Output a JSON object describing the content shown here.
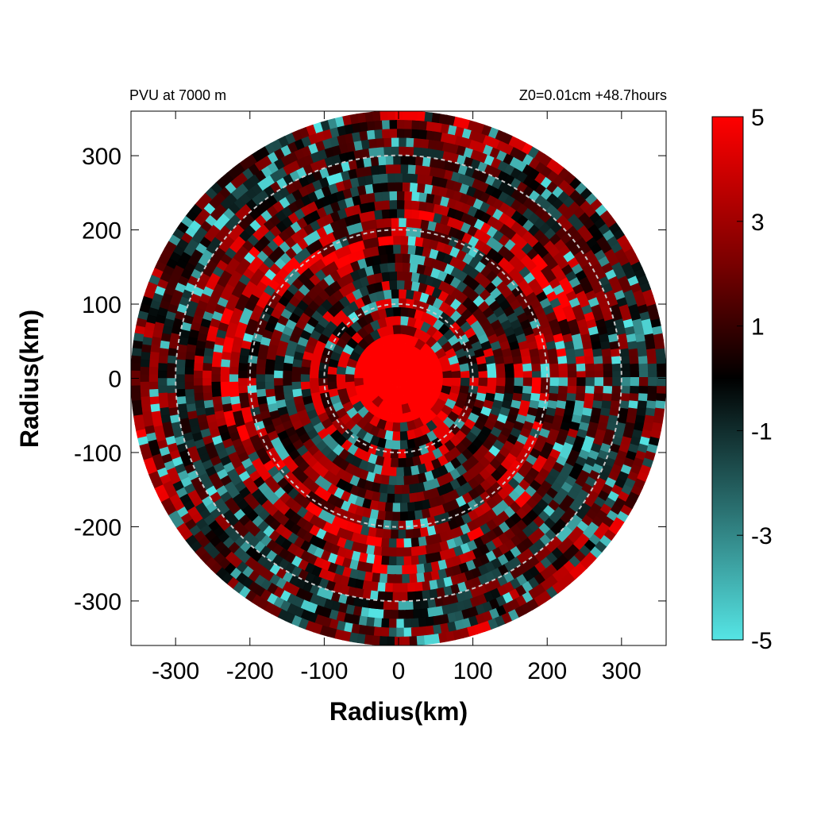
{
  "chart_data": {
    "type": "heatmap",
    "title_left": "PVU at  7000 m",
    "title_right": "Z0=0.01cm  +48.7hours",
    "xlabel": "Radius(km)",
    "ylabel": "Radius(km)",
    "xlim": [
      -360,
      360
    ],
    "ylim": [
      -360,
      360
    ],
    "x_ticks": [
      -300,
      -200,
      -100,
      0,
      100,
      200,
      300
    ],
    "y_ticks": [
      300,
      200,
      100,
      0,
      -100,
      -200,
      -300
    ],
    "domain_radius_km": 360,
    "reference_circles_km": [
      100,
      200,
      300
    ],
    "colorbar": {
      "min": -5,
      "max": 5,
      "ticks": [
        5,
        3,
        1,
        -1,
        -3,
        -5
      ],
      "colors": [
        "#55e5e5",
        "#2a7070",
        "#000000",
        "#7a0000",
        "#ff0000"
      ]
    },
    "field_description_values": {
      "core_radius_km": 60,
      "core_value": 5,
      "background_value": 1
    }
  }
}
